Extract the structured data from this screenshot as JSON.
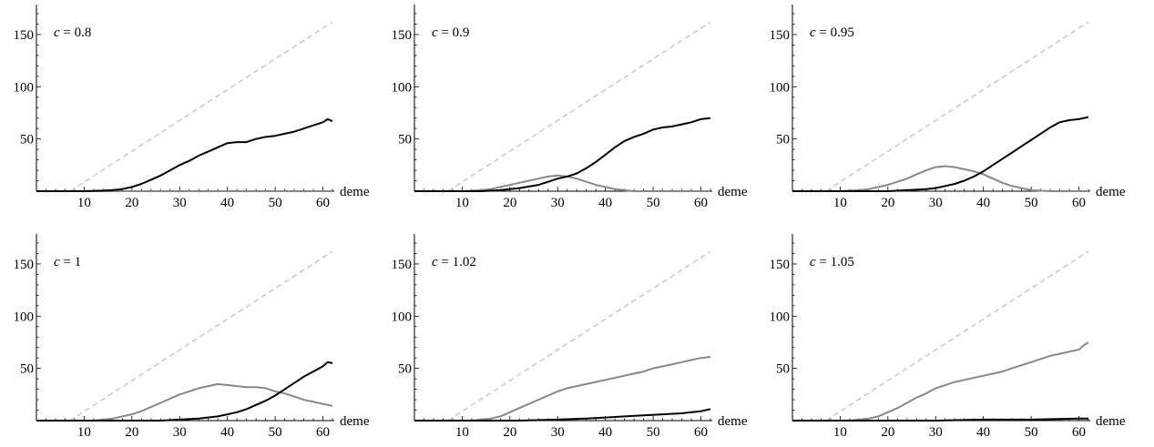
{
  "chart_data": [
    {
      "type": "line",
      "label_var": "c",
      "label_rest": " = 0.8",
      "xlabel": "deme",
      "xticks": [
        10,
        20,
        30,
        40,
        50,
        60
      ],
      "yticks": [
        50,
        100,
        150
      ],
      "xlim": [
        0,
        62
      ],
      "ylim": [
        0,
        170
      ],
      "reference": {
        "x": [
          7,
          62
        ],
        "y": [
          0,
          162
        ],
        "color": "#cccccc"
      },
      "series": [
        {
          "color": "#000000",
          "x": [
            0,
            10,
            14,
            16,
            18,
            20,
            22,
            24,
            26,
            28,
            30,
            32,
            34,
            36,
            38,
            40,
            42,
            44,
            46,
            48,
            50,
            52,
            54,
            56,
            58,
            60,
            61,
            62
          ],
          "y": [
            0,
            0,
            0.5,
            1,
            2,
            4,
            7,
            11,
            15,
            20,
            25,
            29,
            34,
            38,
            42,
            46,
            47,
            47,
            50,
            52,
            53,
            55,
            57,
            60,
            63,
            66,
            69,
            67
          ]
        },
        {
          "color": "#888888",
          "x": [
            0,
            62
          ],
          "y": [
            0,
            0
          ]
        }
      ]
    },
    {
      "type": "line",
      "label_var": "c",
      "label_rest": " = 0.9",
      "xlabel": "deme",
      "xticks": [
        10,
        20,
        30,
        40,
        50,
        60
      ],
      "yticks": [
        50,
        100,
        150
      ],
      "xlim": [
        0,
        62
      ],
      "ylim": [
        0,
        170
      ],
      "reference": {
        "x": [
          7,
          62
        ],
        "y": [
          0,
          162
        ],
        "color": "#cccccc"
      },
      "series": [
        {
          "color": "#000000",
          "x": [
            0,
            14,
            18,
            22,
            26,
            28,
            30,
            32,
            34,
            36,
            38,
            40,
            42,
            44,
            46,
            48,
            50,
            52,
            54,
            56,
            58,
            60,
            62
          ],
          "y": [
            0,
            0,
            1,
            3,
            6,
            9,
            12,
            14,
            17,
            22,
            28,
            35,
            42,
            48,
            52,
            55,
            59,
            61,
            62,
            64,
            66,
            69,
            70
          ]
        },
        {
          "color": "#888888",
          "x": [
            0,
            10,
            14,
            16,
            18,
            20,
            22,
            24,
            26,
            28,
            30,
            32,
            34,
            36,
            38,
            40,
            42,
            44,
            46,
            50,
            62
          ],
          "y": [
            0,
            0,
            1,
            2,
            4,
            6,
            8,
            10,
            12,
            14,
            15,
            14,
            12,
            9,
            6,
            4,
            2,
            1,
            0,
            0,
            0
          ]
        }
      ]
    },
    {
      "type": "line",
      "label_var": "c",
      "label_rest": " = 0.95",
      "xlabel": "deme",
      "xticks": [
        10,
        20,
        30,
        40,
        50,
        60
      ],
      "yticks": [
        50,
        100,
        150
      ],
      "xlim": [
        0,
        62
      ],
      "ylim": [
        0,
        170
      ],
      "reference": {
        "x": [
          7,
          62
        ],
        "y": [
          0,
          162
        ],
        "color": "#cccccc"
      },
      "series": [
        {
          "color": "#000000",
          "x": [
            0,
            20,
            24,
            28,
            30,
            32,
            34,
            36,
            38,
            40,
            42,
            44,
            46,
            48,
            50,
            52,
            54,
            56,
            58,
            60,
            62
          ],
          "y": [
            0,
            0,
            1,
            2,
            3,
            5,
            7,
            10,
            14,
            19,
            25,
            31,
            37,
            43,
            49,
            55,
            61,
            66,
            68,
            69,
            71
          ]
        },
        {
          "color": "#888888",
          "x": [
            0,
            10,
            14,
            16,
            18,
            20,
            22,
            24,
            26,
            28,
            30,
            32,
            34,
            36,
            38,
            40,
            42,
            44,
            46,
            48,
            50,
            54,
            62
          ],
          "y": [
            0,
            0,
            1,
            2,
            4,
            6,
            9,
            12,
            16,
            20,
            23,
            24,
            23,
            21,
            19,
            16,
            12,
            8,
            5,
            3,
            1,
            0,
            0
          ]
        }
      ]
    },
    {
      "type": "line",
      "label_var": "c",
      "label_rest": " = 1",
      "xlabel": "deme",
      "xticks": [
        10,
        20,
        30,
        40,
        50,
        60
      ],
      "yticks": [
        50,
        100,
        150
      ],
      "xlim": [
        0,
        62
      ],
      "ylim": [
        0,
        170
      ],
      "reference": {
        "x": [
          7,
          62
        ],
        "y": [
          0,
          162
        ],
        "color": "#cccccc"
      },
      "series": [
        {
          "color": "#000000",
          "x": [
            0,
            26,
            30,
            34,
            38,
            40,
            42,
            44,
            46,
            48,
            50,
            52,
            54,
            56,
            58,
            60,
            61,
            62
          ],
          "y": [
            0,
            0,
            1,
            2,
            4,
            6,
            8,
            11,
            15,
            19,
            24,
            30,
            36,
            42,
            47,
            52,
            56,
            55
          ]
        },
        {
          "color": "#888888",
          "x": [
            0,
            12,
            16,
            18,
            20,
            22,
            24,
            26,
            28,
            30,
            32,
            34,
            36,
            38,
            40,
            42,
            44,
            46,
            48,
            50,
            52,
            54,
            56,
            58,
            60,
            62
          ],
          "y": [
            0,
            0,
            2,
            4,
            6,
            9,
            13,
            17,
            21,
            25,
            28,
            31,
            33,
            35,
            34,
            33,
            32,
            32,
            31,
            28,
            26,
            23,
            20,
            18,
            16,
            14
          ]
        }
      ]
    },
    {
      "type": "line",
      "label_var": "c",
      "label_rest": " = 1.02",
      "xlabel": "deme",
      "xticks": [
        10,
        20,
        30,
        40,
        50,
        60
      ],
      "yticks": [
        50,
        100,
        150
      ],
      "xlim": [
        0,
        62
      ],
      "ylim": [
        0,
        170
      ],
      "reference": {
        "x": [
          7,
          62
        ],
        "y": [
          0,
          162
        ],
        "color": "#cccccc"
      },
      "series": [
        {
          "color": "#000000",
          "x": [
            0,
            22,
            30,
            36,
            40,
            44,
            48,
            52,
            56,
            60,
            62
          ],
          "y": [
            0,
            0,
            1,
            2,
            3,
            4,
            5,
            6,
            7,
            9,
            11
          ]
        },
        {
          "color": "#888888",
          "x": [
            0,
            12,
            16,
            18,
            20,
            22,
            24,
            26,
            28,
            30,
            32,
            34,
            36,
            38,
            40,
            42,
            44,
            46,
            48,
            50,
            52,
            54,
            56,
            58,
            60,
            62
          ],
          "y": [
            0,
            0,
            2,
            4,
            8,
            12,
            16,
            20,
            24,
            28,
            31,
            33,
            35,
            37,
            39,
            41,
            43,
            45,
            47,
            50,
            52,
            54,
            56,
            58,
            60,
            61
          ]
        }
      ]
    },
    {
      "type": "line",
      "label_var": "c",
      "label_rest": " = 1.05",
      "xlabel": "deme",
      "xticks": [
        10,
        20,
        30,
        40,
        50,
        60
      ],
      "yticks": [
        50,
        100,
        150
      ],
      "xlim": [
        0,
        62
      ],
      "ylim": [
        0,
        170
      ],
      "reference": {
        "x": [
          7,
          62
        ],
        "y": [
          0,
          162
        ],
        "color": "#cccccc"
      },
      "series": [
        {
          "color": "#000000",
          "x": [
            0,
            30,
            40,
            50,
            60,
            62
          ],
          "y": [
            0,
            0,
            1,
            1,
            2,
            2
          ]
        },
        {
          "color": "#888888",
          "x": [
            0,
            12,
            16,
            18,
            20,
            22,
            24,
            26,
            28,
            30,
            32,
            34,
            36,
            38,
            40,
            42,
            44,
            46,
            48,
            50,
            52,
            54,
            56,
            58,
            60,
            61,
            62
          ],
          "y": [
            0,
            0,
            2,
            4,
            8,
            12,
            17,
            22,
            26,
            31,
            34,
            37,
            39,
            41,
            43,
            45,
            47,
            50,
            53,
            56,
            59,
            62,
            64,
            66,
            68,
            72,
            75
          ]
        }
      ]
    }
  ]
}
